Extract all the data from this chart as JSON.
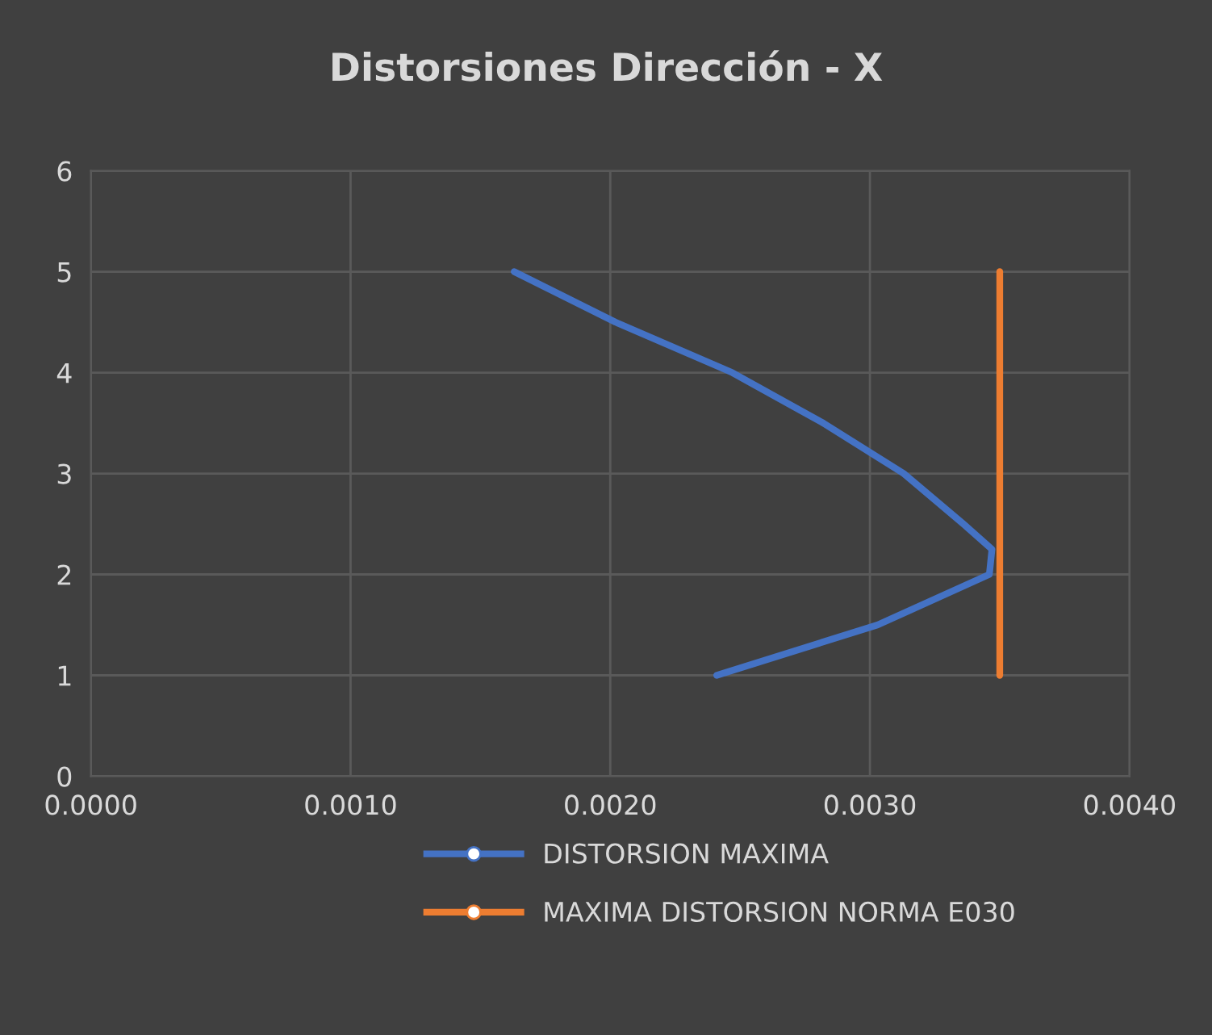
{
  "chart_data": {
    "type": "line",
    "title": "Distorsiones Dirección - X",
    "series": [
      {
        "name": "DISTORSION MAXIMA",
        "color": "#4472c4",
        "x": [
          0.00163,
          0.00202,
          0.00247,
          0.00282,
          0.00313,
          0.00336,
          0.00347,
          0.00346,
          0.00303,
          0.00241
        ],
        "values": [
          5,
          4.5,
          4,
          3.5,
          3,
          2.5,
          2.25,
          2,
          1.5,
          1
        ]
      },
      {
        "name": "MAXIMA DISTORSION NORMA E030",
        "color": "#ed7d31",
        "x": [
          0.0035,
          0.0035,
          0.0035,
          0.0035,
          0.0035
        ],
        "values": [
          5,
          4,
          3,
          2,
          1
        ]
      }
    ],
    "xlim": [
      0,
      0.004
    ],
    "xticks": [
      {
        "value": 0,
        "label": "0.0000"
      },
      {
        "value": 0.001,
        "label": "0.0010"
      },
      {
        "value": 0.002,
        "label": "0.0020"
      },
      {
        "value": 0.003,
        "label": "0.0030"
      },
      {
        "value": 0.004,
        "label": "0.0040"
      }
    ],
    "ylim": [
      0,
      6
    ],
    "yticks": [
      0,
      1,
      2,
      3,
      4,
      5,
      6
    ],
    "grid": true,
    "legend": "bottom",
    "marker": "none",
    "line_style": "solid"
  }
}
